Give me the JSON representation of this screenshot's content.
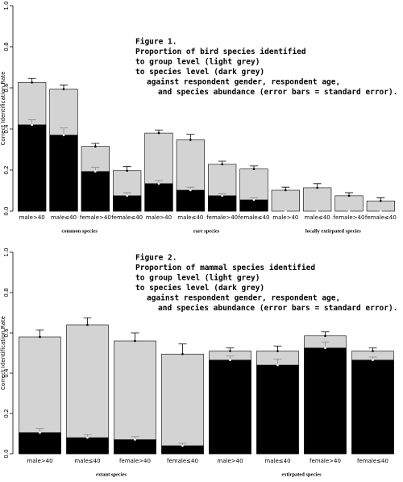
{
  "chart_data": [
    {
      "type": "bar",
      "title": [
        "Figure 1.",
        "Proportion of bird species identified",
        "to group level (light grey)",
        "to species level (dark grey)",
        "against respondent gender, respondent age,",
        "and species abundance (error bars = standard error)."
      ],
      "ylabel": "Correct Identification Rate",
      "categories": [
        "male>40",
        "male≤40",
        "female>40",
        "female≤40",
        "male>40",
        "male≤40",
        "female>40",
        "female≤40",
        "male>40",
        "male≤40",
        "female>40",
        "female≤40"
      ],
      "group_labels": [
        "common species",
        "rare species",
        "locally extirpated species"
      ],
      "series": [
        {
          "color": "#d3d3d3",
          "values": [
            0.626,
            0.594,
            0.315,
            0.197,
            0.38,
            0.347,
            0.228,
            0.205,
            0.102,
            0.114,
            0.075,
            0.05
          ],
          "errors": [
            0.02,
            0.02,
            0.015,
            0.02,
            0.015,
            0.027,
            0.015,
            0.015,
            0.015,
            0.02,
            0.015,
            0.015
          ]
        },
        {
          "color": "#000000",
          "values": [
            0.42,
            0.37,
            0.193,
            0.075,
            0.134,
            0.102,
            0.075,
            0.055,
            0.0,
            0.0,
            0.0,
            0.0
          ],
          "errors": [
            0.025,
            0.035,
            0.02,
            0.015,
            0.015,
            0.015,
            0.01,
            0.01,
            0.0,
            0.0,
            0.0,
            0.0
          ]
        }
      ],
      "ylim": [
        0,
        1
      ],
      "yticks": [
        {
          "value": 0,
          "label": "0.0"
        },
        0.2,
        0.4,
        0.6,
        0.8,
        {
          "value": 1,
          "label": "1.0"
        }
      ]
    },
    {
      "type": "bar",
      "title": [
        "Figure 2.",
        "Proportion of mammal species identified",
        "to group level (light grey)",
        "to species level (dark grey)",
        "against respondent gender, respondent age,",
        "and species abundance (error bars = standard error)."
      ],
      "ylabel": "Correct Identification Rate",
      "categories": [
        "male>40",
        "male≤40",
        "female>40",
        "female≤40",
        "male>40",
        "male≤40",
        "female>40",
        "female≤40"
      ],
      "group_labels": [
        "extant species",
        "extirpated species"
      ],
      "series": [
        {
          "color": "#d3d3d3",
          "values": [
            0.58,
            0.64,
            0.56,
            0.495,
            0.51,
            0.51,
            0.585,
            0.51
          ],
          "errors": [
            0.035,
            0.035,
            0.04,
            0.05,
            0.015,
            0.025,
            0.02,
            0.015
          ]
        },
        {
          "color": "#000000",
          "values": [
            0.105,
            0.08,
            0.07,
            0.04,
            0.465,
            0.44,
            0.525,
            0.465
          ],
          "errors": [
            0.02,
            0.015,
            0.015,
            0.012,
            0.02,
            0.03,
            0.03,
            0.015
          ]
        }
      ],
      "ylim": [
        0,
        1
      ],
      "yticks": [
        {
          "value": 0,
          "label": "0.0"
        },
        0.2,
        0.4,
        0.6,
        0.8,
        {
          "value": 1,
          "label": "1.0"
        }
      ]
    }
  ]
}
